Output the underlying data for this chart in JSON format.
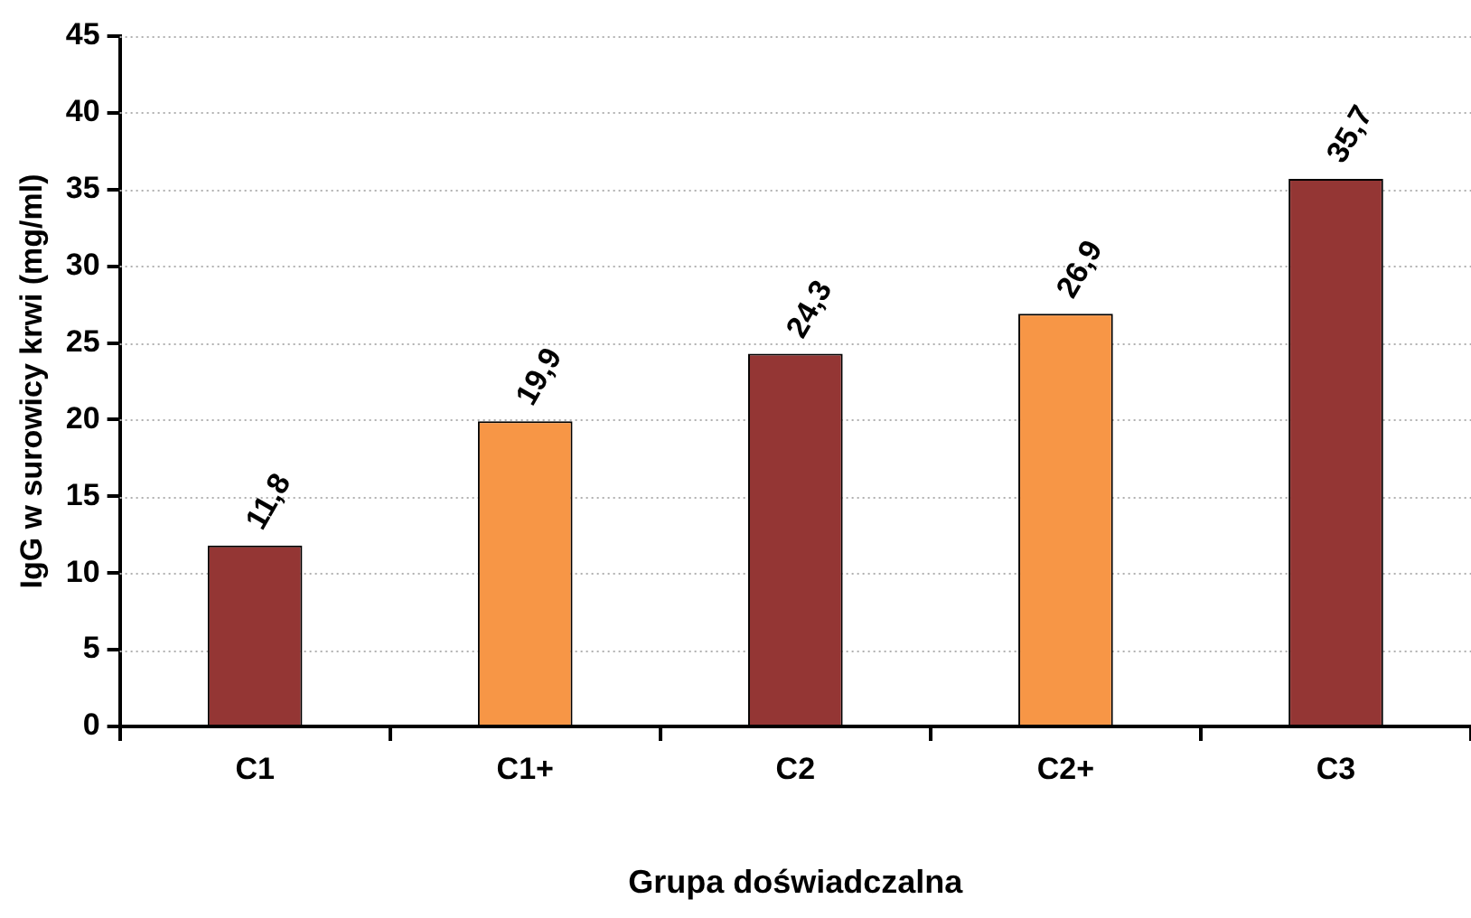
{
  "chart_data": {
    "type": "bar",
    "xlabel": "Grupa doświadczalna",
    "ylabel": "IgG w surowicy krwi (mg/ml)",
    "categories": [
      "C1",
      "C1+",
      "C2",
      "C2+",
      "C3"
    ],
    "values": [
      11.8,
      19.9,
      24.3,
      26.9,
      35.7
    ],
    "colors": [
      "#943634",
      "#f79646",
      "#943634",
      "#f79646",
      "#943634"
    ],
    "value_labels": [
      "11,8",
      "19,9",
      "24,3",
      "26,9",
      "35,7"
    ],
    "ylim": [
      0,
      45
    ],
    "yticks": [
      0,
      5,
      10,
      15,
      20,
      25,
      30,
      35,
      40,
      45
    ],
    "grid": "y",
    "legend": false
  }
}
